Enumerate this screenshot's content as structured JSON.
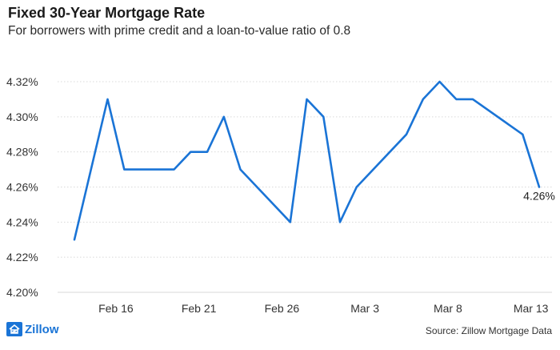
{
  "header": {
    "title": "Fixed 30-Year Mortgage Rate",
    "subtitle": "For borrowers with prime credit and a loan-to-value ratio of 0.8"
  },
  "footer": {
    "logo_text": "Zillow",
    "source": "Source: Zillow Mortgage Data"
  },
  "colors": {
    "line": "#1a74d6",
    "grid": "#d9d9d9",
    "logo": "#1a74d6"
  },
  "chart_data": {
    "type": "line",
    "title": "Fixed 30-Year Mortgage Rate",
    "subtitle": "For borrowers with prime credit and a loan-to-value ratio of 0.8",
    "xlabel": "",
    "ylabel": "",
    "ylim": [
      4.2,
      4.32
    ],
    "y_ticks": [
      4.2,
      4.22,
      4.24,
      4.26,
      4.28,
      4.3,
      4.32
    ],
    "y_tick_labels": [
      "4.20%",
      "4.22%",
      "4.24%",
      "4.26%",
      "4.28%",
      "4.30%",
      "4.32%"
    ],
    "x_ticks": [
      "Feb 16",
      "Feb 21",
      "Feb 26",
      "Mar 3",
      "Mar 8",
      "Mar 13"
    ],
    "x_tick_index": [
      2.5,
      7.5,
      12.5,
      17.5,
      22.5,
      27.5
    ],
    "grid": "horizontal",
    "series": [
      {
        "values": [
          4.23,
          4.31,
          4.27,
          4.27,
          4.27,
          4.27,
          4.28,
          4.28,
          4.3,
          4.27,
          4.24,
          4.31,
          4.3,
          4.24,
          4.26,
          4.29,
          4.31,
          4.32,
          4.31,
          4.31,
          4.29,
          4.26
        ],
        "x_index": [
          0,
          2,
          3,
          4,
          5,
          6,
          7,
          8,
          9,
          10,
          13,
          14,
          15,
          16,
          17,
          20,
          21,
          22,
          23,
          24,
          27,
          28
        ]
      }
    ],
    "annotations": [
      {
        "text": "4.26%",
        "at": "last point"
      }
    ]
  }
}
